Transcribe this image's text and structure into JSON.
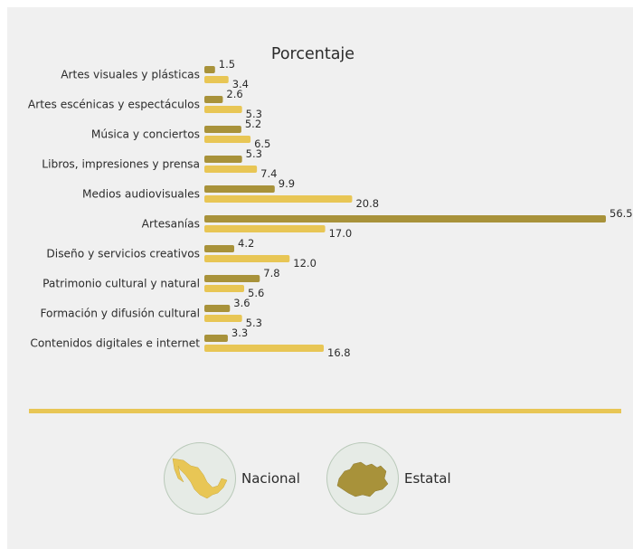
{
  "colors": {
    "nacional": "#a8923a",
    "estatal": "#e8c655",
    "divider": "#e8c655"
  },
  "chart_data": {
    "type": "bar",
    "orientation": "horizontal",
    "title": "Porcentaje",
    "categories": [
      "Artes visuales y plásticas",
      "Artes escénicas y espectáculos",
      "Música y conciertos",
      "Libros, impresiones y prensa",
      "Medios audiovisuales",
      "Artesanías",
      "Diseño y servicios creativos",
      "Patrimonio cultural y natural",
      "Formación y difusión cultural",
      "Contenidos digitales e internet"
    ],
    "series": [
      {
        "name": "Nacional",
        "color": "#a8923a",
        "values": [
          1.5,
          2.6,
          5.2,
          5.3,
          9.9,
          56.5,
          4.2,
          7.8,
          3.6,
          3.3
        ],
        "labels": [
          "1.5",
          "2.6",
          "5.2",
          "5.3",
          "9.9",
          "56.5",
          "4.2",
          "7.8",
          "3.6",
          "3.3"
        ]
      },
      {
        "name": "Estatal",
        "color": "#e8c655",
        "values": [
          3.4,
          5.3,
          6.5,
          7.4,
          20.8,
          17.0,
          12.0,
          5.6,
          5.3,
          16.8
        ],
        "labels": [
          "3.4",
          "5.3",
          "6.5",
          "7.4",
          "20.8",
          "17.0",
          "12.0",
          "5.6",
          "5.3",
          "16.8"
        ]
      }
    ],
    "xlim": [
      0,
      56.5
    ],
    "legend_position": "bottom-center"
  },
  "legend": {
    "nacional": {
      "label": "Nacional",
      "icon": "mexico-map-icon"
    },
    "estatal": {
      "label": "Estatal",
      "icon": "state-map-icon"
    }
  }
}
